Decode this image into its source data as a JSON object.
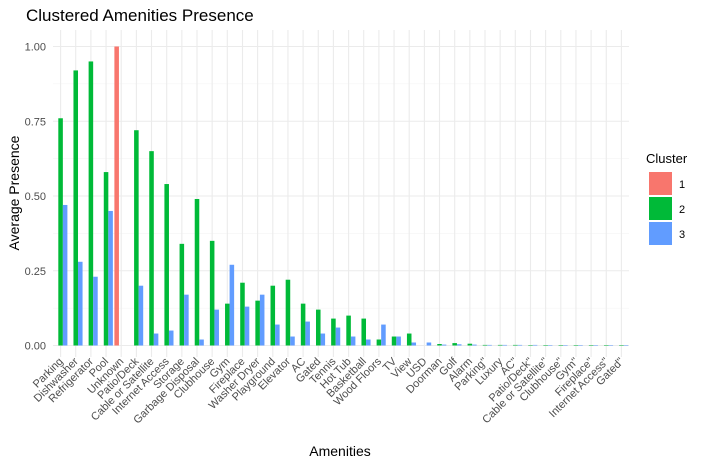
{
  "chart_data": {
    "type": "bar",
    "title": "Clustered Amenities Presence",
    "xlabel": "Amenities",
    "ylabel": "Average Presence",
    "ylim": [
      0,
      1.05
    ],
    "yticks": [
      "0.00",
      "0.25",
      "0.50",
      "0.75",
      "1.00"
    ],
    "ytick_values": [
      0,
      0.25,
      0.5,
      0.75,
      1.0
    ],
    "grid": true,
    "legend": {
      "title": "Cluster",
      "placement": "right"
    },
    "categories": [
      "Parking",
      "Dishwasher",
      "Refrigerator",
      "Pool",
      "Unknown",
      "Patio/Deck",
      "Cable or Satellite",
      "Internet Access",
      "Storage",
      "Garbage Disposal",
      "Clubhouse",
      "Gym",
      "Fireplace",
      "Washer Dryer",
      "Playground",
      "Elevator",
      "AC",
      "Gated",
      "Tennis",
      "Hot Tub",
      "Basketball",
      "Wood Floors",
      "TV",
      "View",
      "USD",
      "Doorman",
      "Golf",
      "Alarm",
      "Parking\"",
      "Luxury",
      "AC\"",
      "Patio/Deck\"",
      "Cable or Satellite\"",
      "Clubhouse\"",
      "Gym\"",
      "Fireplace\"",
      "Internet Access\"",
      "Gated\""
    ],
    "series": [
      {
        "name": "1",
        "color": "#F8766D",
        "values": [
          0,
          0,
          0,
          0,
          1.0,
          0,
          0,
          0,
          0,
          0,
          0,
          0,
          0,
          0,
          0,
          0,
          0,
          0,
          0,
          0,
          0,
          0,
          0,
          0,
          0,
          0,
          0,
          0,
          0,
          0,
          0,
          0,
          0,
          0,
          0,
          0,
          0,
          0
        ]
      },
      {
        "name": "2",
        "color": "#00BA38",
        "values": [
          0.76,
          0.92,
          0.95,
          0.58,
          0,
          0.72,
          0.65,
          0.54,
          0.34,
          0.49,
          0.35,
          0.14,
          0.21,
          0.15,
          0.2,
          0.22,
          0.14,
          0.12,
          0.09,
          0.1,
          0.09,
          0.02,
          0.03,
          0.04,
          0,
          0.005,
          0.008,
          0.006,
          0.002,
          0.002,
          0.002,
          0.001,
          0.001,
          0.001,
          0.001,
          0.001,
          0.001,
          0.001
        ]
      },
      {
        "name": "3",
        "color": "#619CFF",
        "values": [
          0.47,
          0.28,
          0.23,
          0.45,
          0,
          0.2,
          0.04,
          0.05,
          0.17,
          0.02,
          0.12,
          0.27,
          0.13,
          0.17,
          0.07,
          0.03,
          0.08,
          0.04,
          0.06,
          0.03,
          0.02,
          0.07,
          0.03,
          0.01,
          0.01,
          0.003,
          0.004,
          0.003,
          0.002,
          0.002,
          0.002,
          0.002,
          0.001,
          0.001,
          0.001,
          0.001,
          0.001,
          0.001
        ]
      }
    ]
  }
}
